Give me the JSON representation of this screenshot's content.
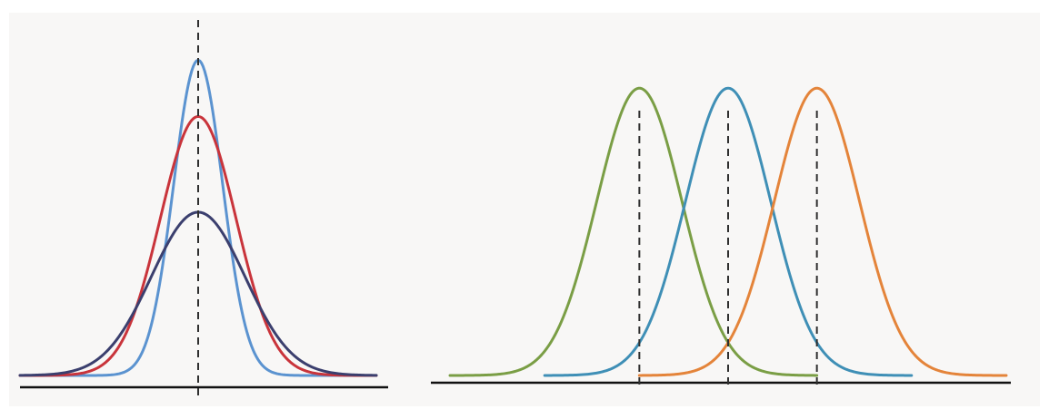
{
  "chart_data": [
    {
      "type": "line",
      "title": "",
      "xlabel": "",
      "ylabel": "",
      "grid": false,
      "legend": "none",
      "xlim": [
        -4,
        4
      ],
      "ylim": [
        0,
        1.25
      ],
      "mean_markers": [
        0
      ],
      "series": [
        {
          "mean": 0,
          "sd": 0.55,
          "peak": 1.12,
          "color": "#5b93d0"
        },
        {
          "mean": 0,
          "sd": 0.85,
          "peak": 0.92,
          "color": "#c9343b"
        },
        {
          "mean": 0,
          "sd": 1.05,
          "peak": 0.58,
          "color": "#3b3f6e"
        }
      ]
    },
    {
      "type": "line",
      "title": "",
      "xlabel": "",
      "ylabel": "",
      "grid": false,
      "legend": "none",
      "xlim": [
        -2.4,
        7.4
      ],
      "ylim": [
        0,
        1.0
      ],
      "mean_markers": [
        1.0,
        2.5,
        4.0
      ],
      "series": [
        {
          "mean": 1.0,
          "sd": 0.72,
          "peak": 0.88,
          "x_range": [
            -2.2,
            4.0
          ],
          "color": "#7a9e45"
        },
        {
          "mean": 2.5,
          "sd": 0.72,
          "peak": 0.88,
          "x_range": [
            -0.6,
            5.6
          ],
          "color": "#3f8fb6"
        },
        {
          "mean": 4.0,
          "sd": 0.72,
          "peak": 0.88,
          "x_range": [
            1.0,
            7.2
          ],
          "color": "#e4843a"
        }
      ]
    }
  ]
}
